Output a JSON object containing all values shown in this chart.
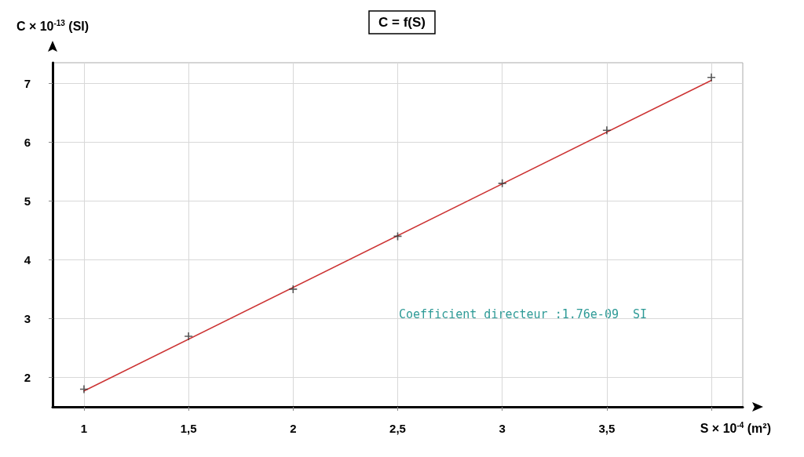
{
  "chart_data": {
    "type": "scatter",
    "title": "C = f(S)",
    "xlabel": "S × 10$^{-4}$ (m²)",
    "ylabel": "C × 10$^{-13}$ (SI)",
    "x": [
      1,
      1.5,
      2,
      2.5,
      3,
      3.5,
      4
    ],
    "series": [
      {
        "color": "#333333",
        "values": [
          1.8,
          2.7,
          3.5,
          4.4,
          5.3,
          6.2,
          7.1
        ],
        "marker": "cross"
      },
      {
        "type": "line",
        "color": "#cc3333",
        "x": [
          1,
          4
        ],
        "values": [
          1.77,
          7.05
        ],
        "marker": "none",
        "line_style": "solid"
      }
    ],
    "xlim": [
      0.85,
      4.15
    ],
    "xticks": [
      1,
      {
        "value": 1.5,
        "label": "1,5"
      },
      2,
      {
        "value": 2.5,
        "label": "2,5"
      },
      3,
      {
        "value": 3.5,
        "label": "3,5"
      },
      {
        "value": 4,
        "label": null
      }
    ],
    "ylim": [
      1.5,
      7.35
    ],
    "yticks": [
      2,
      3,
      4,
      5,
      6,
      7
    ],
    "grid": true,
    "annotations": [
      "Coefficient directeur :1.76e-09  SI"
    ]
  }
}
